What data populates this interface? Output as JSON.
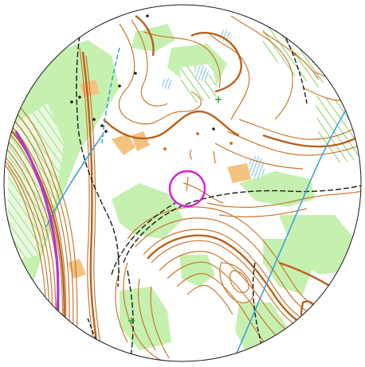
{
  "map": {
    "type": "orienteering-map",
    "view": "circular-clip",
    "colors": {
      "contour": "#c8782e",
      "index_contour": "#b9611d",
      "vegetation_green": "#c6f0b0",
      "forest_stripes": "#8fd36b",
      "open_land": "#f3c27e",
      "track": "#1b1b1b",
      "water": "#3aa7e0",
      "course_purple": "#d61fd1",
      "power_line": "#2f9fe0",
      "boundary_purple": "#b036d8"
    },
    "control_circle": {
      "label": ""
    },
    "features": [
      "contours",
      "index-contours",
      "vegetation",
      "forest-stripes",
      "tracks",
      "power-lines",
      "streams",
      "boulders",
      "control-circle",
      "purple-boundary"
    ]
  }
}
